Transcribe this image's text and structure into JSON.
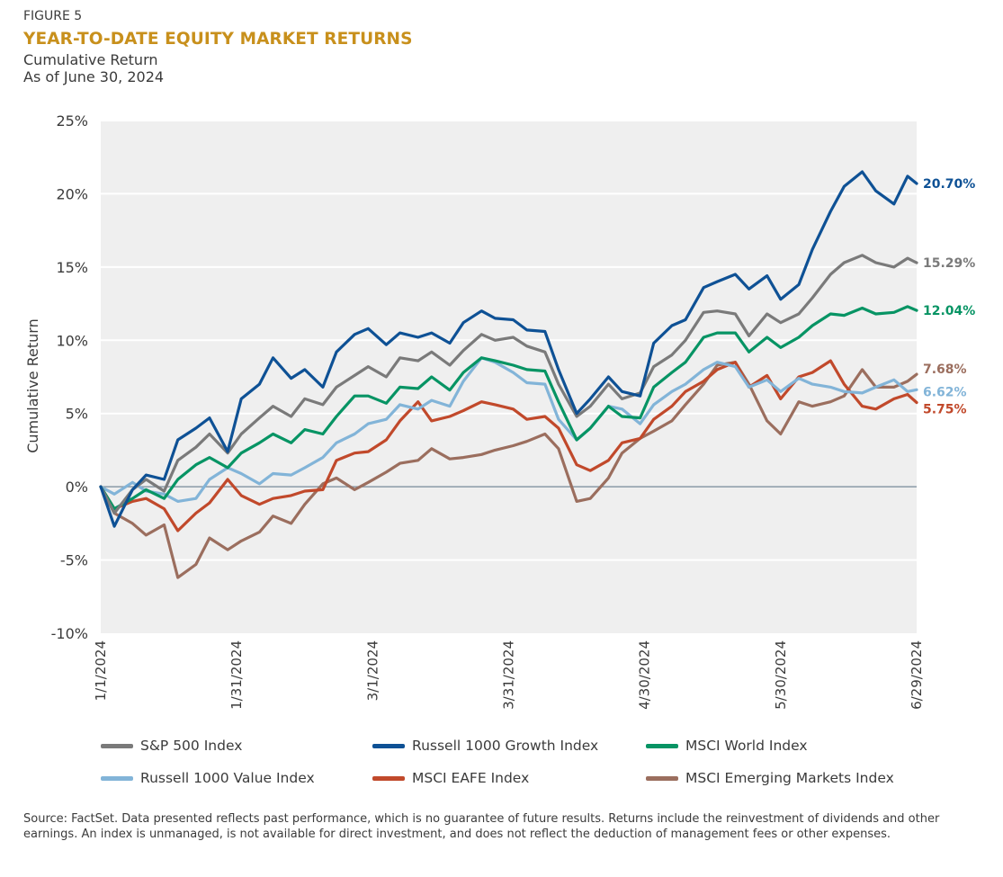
{
  "header": {
    "figure_label": "FIGURE 5",
    "title": "YEAR-TO-DATE EQUITY MARKET RETURNS",
    "subtitle": "Cumulative Return",
    "as_of": "As of June 30, 2024"
  },
  "footer": {
    "source": "Source: FactSet. Data presented reflects past performance, which is no guarantee of future results. Returns include the reinvestment of dividends and other earnings. An index is unmanaged, is not available for direct investment, and does not reflect the deduction of management fees or other expenses."
  },
  "chart_data": {
    "type": "line",
    "title": "YEAR-TO-DATE EQUITY MARKET RETURNS",
    "subtitle": "Cumulative Return",
    "xlabel": "",
    "ylabel": "Cumulative Return",
    "ylim": [
      -10,
      25
    ],
    "yticks": [
      25,
      20,
      15,
      10,
      5,
      0,
      -5,
      -10
    ],
    "ytick_labels": [
      "25%",
      "20%",
      "15%",
      "10%",
      "5%",
      "0%",
      "-5%",
      "-10%"
    ],
    "xlim_days": [
      0,
      180
    ],
    "xticks_days": [
      0,
      30,
      60,
      90,
      120,
      150,
      180
    ],
    "xtick_labels": [
      "1/1/2024",
      "1/31/2024",
      "3/1/2024",
      "3/31/2024",
      "4/30/2024",
      "5/30/2024",
      "6/29/2024"
    ],
    "grid": true,
    "legend_position": "bottom",
    "x_days": [
      0,
      3,
      7,
      10,
      14,
      17,
      21,
      24,
      28,
      31,
      35,
      38,
      42,
      45,
      49,
      52,
      56,
      59,
      63,
      66,
      70,
      73,
      77,
      80,
      84,
      87,
      91,
      94,
      98,
      101,
      105,
      108,
      112,
      115,
      119,
      122,
      126,
      129,
      133,
      136,
      140,
      143,
      147,
      150,
      154,
      157,
      161,
      164,
      168,
      171,
      175,
      178,
      180
    ],
    "series": [
      {
        "name": "S&P 500 Index",
        "color": "#7a7a7a",
        "end_label": "15.29%",
        "values": [
          0,
          -1.8,
          -0.2,
          0.5,
          -0.3,
          1.8,
          2.7,
          3.6,
          2.3,
          3.6,
          4.7,
          5.5,
          4.8,
          6.0,
          5.6,
          6.8,
          7.6,
          8.2,
          7.5,
          8.8,
          8.6,
          9.2,
          8.3,
          9.3,
          10.4,
          10.0,
          10.2,
          9.6,
          9.2,
          7.0,
          4.8,
          5.5,
          7.0,
          6.0,
          6.4,
          8.2,
          9.0,
          10.0,
          11.9,
          12.0,
          11.8,
          10.3,
          11.8,
          11.2,
          11.8,
          12.9,
          14.5,
          15.3,
          15.8,
          15.3,
          15.0,
          15.6,
          15.29
        ]
      },
      {
        "name": "Russell 1000 Growth Index",
        "color": "#0e5195",
        "end_label": "20.70%",
        "values": [
          0,
          -2.7,
          -0.2,
          0.8,
          0.5,
          3.2,
          4.0,
          4.7,
          2.4,
          6.0,
          7.0,
          8.8,
          7.4,
          8.0,
          6.8,
          9.2,
          10.4,
          10.8,
          9.7,
          10.5,
          10.2,
          10.5,
          9.8,
          11.2,
          12.0,
          11.5,
          11.4,
          10.7,
          10.6,
          8.0,
          5.0,
          6.0,
          7.5,
          6.5,
          6.2,
          9.8,
          11.0,
          11.4,
          13.6,
          14.0,
          14.5,
          13.5,
          14.4,
          12.8,
          13.8,
          16.2,
          18.8,
          20.5,
          21.5,
          20.2,
          19.3,
          21.2,
          20.7
        ]
      },
      {
        "name": "MSCI World Index",
        "color": "#079464",
        "end_label": "12.04%",
        "values": [
          0,
          -1.5,
          -0.8,
          -0.2,
          -0.8,
          0.5,
          1.5,
          2.0,
          1.3,
          2.3,
          3.0,
          3.6,
          3.0,
          3.9,
          3.6,
          4.8,
          6.2,
          6.2,
          5.7,
          6.8,
          6.7,
          7.5,
          6.6,
          7.8,
          8.8,
          8.6,
          8.3,
          8.0,
          7.9,
          5.8,
          3.2,
          4.0,
          5.5,
          4.8,
          4.7,
          6.8,
          7.8,
          8.5,
          10.2,
          10.5,
          10.5,
          9.2,
          10.2,
          9.5,
          10.2,
          11.0,
          11.8,
          11.7,
          12.2,
          11.8,
          11.9,
          12.3,
          12.04
        ]
      },
      {
        "name": "Russell 1000 Value Index",
        "color": "#82b4d8",
        "end_label": "6.62%",
        "values": [
          0,
          -0.5,
          0.3,
          -0.3,
          -0.5,
          -1.0,
          -0.8,
          0.5,
          1.3,
          0.9,
          0.2,
          0.9,
          0.8,
          1.3,
          2.0,
          3.0,
          3.6,
          4.3,
          4.6,
          5.6,
          5.3,
          5.9,
          5.5,
          7.2,
          8.8,
          8.5,
          7.8,
          7.1,
          7.0,
          4.6,
          3.2,
          4.0,
          5.5,
          5.3,
          4.3,
          5.6,
          6.5,
          7.0,
          8.0,
          8.5,
          8.2,
          6.8,
          7.3,
          6.5,
          7.4,
          7.0,
          6.8,
          6.5,
          6.4,
          6.8,
          7.3,
          6.5,
          6.62
        ]
      },
      {
        "name": "MSCI EAFE Index",
        "color": "#c1492b",
        "end_label": "5.75%",
        "values": [
          0,
          -1.5,
          -1.0,
          -0.8,
          -1.5,
          -3.0,
          -1.8,
          -1.1,
          0.5,
          -0.6,
          -1.2,
          -0.8,
          -0.6,
          -0.3,
          -0.2,
          1.8,
          2.3,
          2.4,
          3.2,
          4.5,
          5.8,
          4.5,
          4.8,
          5.2,
          5.8,
          5.6,
          5.3,
          4.6,
          4.8,
          4.0,
          1.5,
          1.1,
          1.8,
          3.0,
          3.3,
          4.6,
          5.5,
          6.5,
          7.2,
          8.0,
          8.5,
          6.8,
          7.6,
          6.0,
          7.5,
          7.8,
          8.6,
          7.0,
          5.5,
          5.3,
          6.0,
          6.3,
          5.75
        ]
      },
      {
        "name": "MSCI Emerging Markets Index",
        "color": "#9b6e5e",
        "end_label": "7.68%",
        "values": [
          0,
          -1.8,
          -2.5,
          -3.3,
          -2.6,
          -6.2,
          -5.3,
          -3.5,
          -4.3,
          -3.7,
          -3.1,
          -2.0,
          -2.5,
          -1.2,
          0.2,
          0.6,
          -0.2,
          0.3,
          1.0,
          1.6,
          1.8,
          2.6,
          1.9,
          2.0,
          2.2,
          2.5,
          2.8,
          3.1,
          3.6,
          2.6,
          -1.0,
          -0.8,
          0.6,
          2.3,
          3.3,
          3.8,
          4.5,
          5.6,
          7.0,
          8.3,
          8.5,
          7.0,
          4.5,
          3.6,
          5.8,
          5.5,
          5.8,
          6.2,
          8.0,
          6.8,
          6.8,
          7.2,
          7.68
        ]
      }
    ]
  }
}
